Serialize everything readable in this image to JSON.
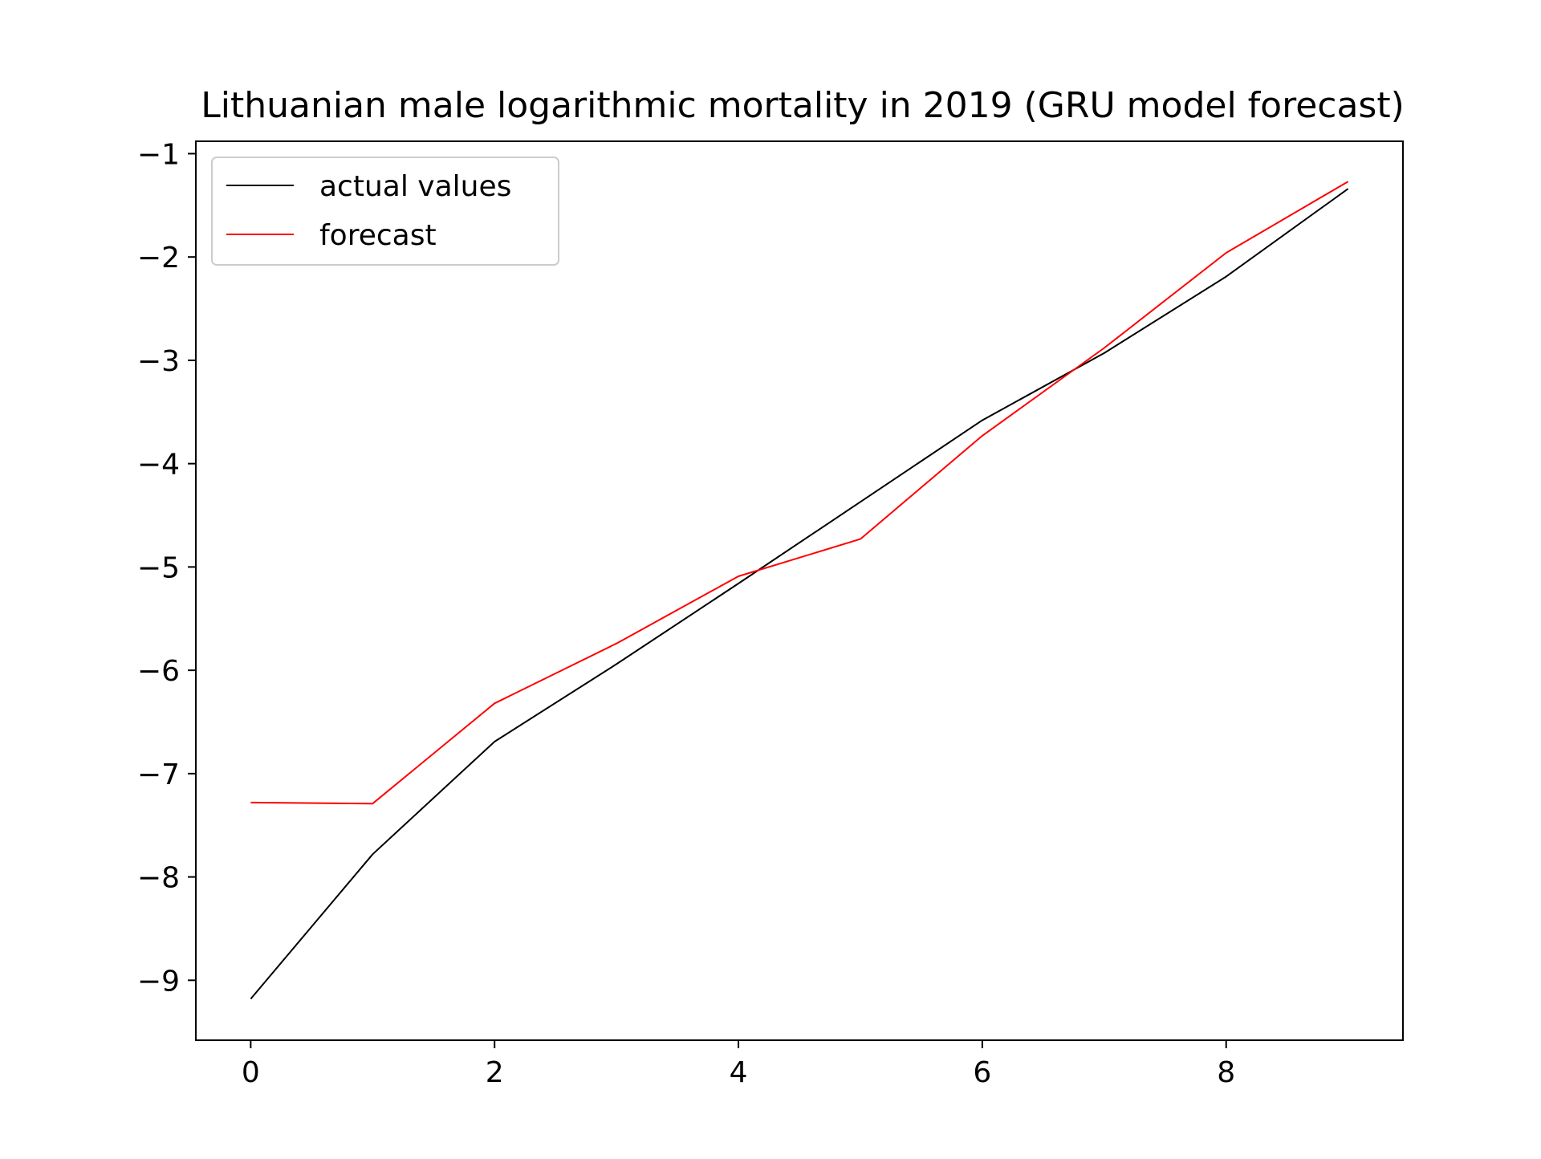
{
  "chart_data": {
    "type": "line",
    "title": "Lithuanian male logarithmic mortality in 2019 (GRU model forecast)",
    "xlabel": "",
    "ylabel": "",
    "x": [
      0,
      1,
      2,
      3,
      4,
      5,
      6,
      7,
      8,
      9
    ],
    "xlim": [
      -0.45,
      9.45
    ],
    "ylim": [
      -9.58,
      -0.88
    ],
    "xticks": [
      0,
      2,
      4,
      6,
      8
    ],
    "xtick_labels": [
      "0",
      "2",
      "4",
      "6",
      "8"
    ],
    "yticks": [
      -1,
      -2,
      -3,
      -4,
      -5,
      -6,
      -7,
      -8,
      -9
    ],
    "ytick_labels": [
      "−1",
      "−2",
      "−3",
      "−4",
      "−5",
      "−6",
      "−7",
      "−8",
      "−9"
    ],
    "grid": false,
    "legend_position": "upper-left",
    "series": [
      {
        "name": "actual values",
        "color": "#000000",
        "values": [
          -9.18,
          -7.78,
          -6.69,
          -5.94,
          -5.16,
          -4.37,
          -3.58,
          -2.93,
          -2.19,
          -1.34
        ]
      },
      {
        "name": "forecast",
        "color": "#ff0000",
        "values": [
          -7.28,
          -7.29,
          -6.32,
          -5.74,
          -5.09,
          -4.73,
          -3.73,
          -2.88,
          -1.96,
          -1.27
        ]
      }
    ]
  }
}
